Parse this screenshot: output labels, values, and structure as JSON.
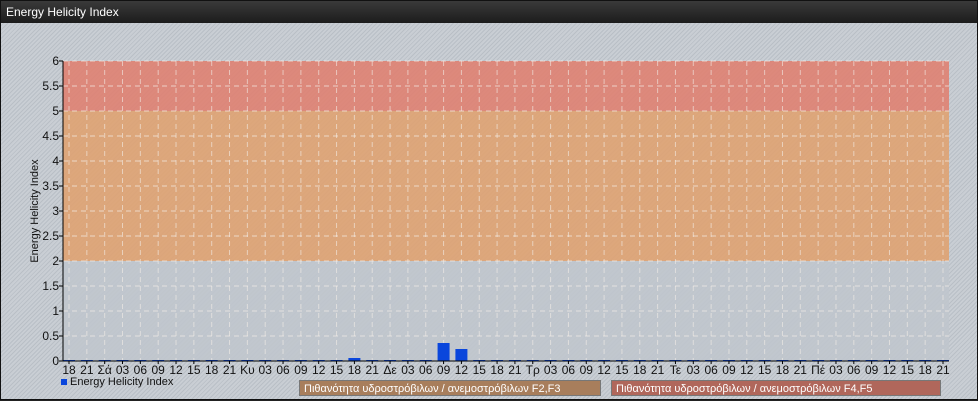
{
  "window": {
    "title": "Energy Helicity Index"
  },
  "legend": {
    "series_label": "Energy Helicity Index",
    "bands": [
      {
        "label": "Πιθανότητα υδροστρόβιλων / ανεμοστρόβιλων F2,F3",
        "color": "#a87e5c"
      },
      {
        "label": "Πιθανότητα υδροστρόβιλων / ανεμοστρόβιλων F4,F5",
        "color": "#b0675b"
      }
    ]
  },
  "chart_data": {
    "type": "bar",
    "title": "",
    "ylabel": "Energy Helicity Index",
    "xlabel": "",
    "ylim": [
      0,
      6
    ],
    "yticks": [
      "0",
      "0.5",
      "1",
      "1.5",
      "2",
      "2.5",
      "3",
      "3.5",
      "4",
      "4.5",
      "5",
      "5.5",
      "6"
    ],
    "grid": true,
    "legend_position": "bottom",
    "bands": [
      {
        "from": 0,
        "to": 2,
        "color": "#c0c6cc"
      },
      {
        "from": 2,
        "to": 5,
        "color": "#e0a06c"
      },
      {
        "from": 5,
        "to": 6,
        "color": "#e07c6c"
      }
    ],
    "categories": [
      "18",
      "21",
      "Σά",
      "03",
      "06",
      "09",
      "12",
      "15",
      "18",
      "21",
      "Κυ",
      "03",
      "06",
      "09",
      "12",
      "15",
      "18",
      "21",
      "Δε",
      "03",
      "06",
      "09",
      "12",
      "15",
      "18",
      "21",
      "Τρ",
      "03",
      "06",
      "09",
      "12",
      "15",
      "18",
      "21",
      "Τε",
      "03",
      "06",
      "09",
      "12",
      "15",
      "18",
      "21",
      "Πέ",
      "03",
      "06",
      "09",
      "12",
      "15",
      "18",
      "21"
    ],
    "series": [
      {
        "name": "Energy Helicity Index",
        "color": "#0a46dc",
        "values": [
          0.02,
          0.02,
          0.02,
          0.02,
          0.02,
          0.02,
          0.02,
          0.02,
          0.02,
          0.02,
          0.02,
          0.02,
          0.02,
          0.02,
          0.02,
          0.02,
          0.06,
          0.02,
          0.02,
          0.02,
          0.02,
          0.36,
          0.24,
          0.02,
          0.02,
          0.02,
          0.02,
          0.02,
          0.02,
          0.02,
          0.02,
          0.02,
          0.02,
          0.02,
          0.02,
          0.02,
          0.02,
          0.02,
          0.02,
          0.02,
          0.02,
          0.02,
          0.02,
          0.02,
          0.02,
          0.02,
          0.02,
          0.02,
          0.02,
          0.02
        ]
      }
    ]
  }
}
